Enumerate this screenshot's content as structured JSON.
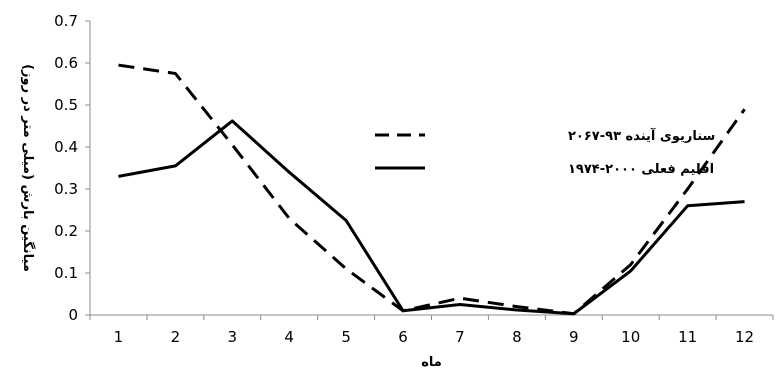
{
  "chart_data": {
    "type": "line",
    "title": "",
    "xlabel": "ماه",
    "ylabel": "میانگین بارش (میلی متر در روز)",
    "x": [
      1,
      2,
      3,
      4,
      5,
      6,
      7,
      8,
      9,
      10,
      11,
      12
    ],
    "ylim": [
      0,
      0.7
    ],
    "yticks": [
      "0",
      "0.1",
      "0.2",
      "0.3",
      "0.4",
      "0.5",
      "0.6",
      "0.7"
    ],
    "grid": false,
    "legend_position": "right",
    "series": [
      {
        "name": "سناریوی آینده ۹۳-۲۰۶۷",
        "style": "dashed",
        "color": "#000000",
        "values": [
          0.595,
          0.575,
          0.405,
          0.23,
          0.11,
          0.01,
          0.04,
          0.02,
          0.003,
          0.12,
          0.3,
          0.49
        ]
      },
      {
        "name": "اقلیم فعلی ۲۰۰۰-۱۹۷۴",
        "style": "solid",
        "color": "#000000",
        "values": [
          0.33,
          0.355,
          0.462,
          0.34,
          0.225,
          0.01,
          0.025,
          0.012,
          0.003,
          0.105,
          0.26,
          0.27
        ]
      }
    ]
  }
}
